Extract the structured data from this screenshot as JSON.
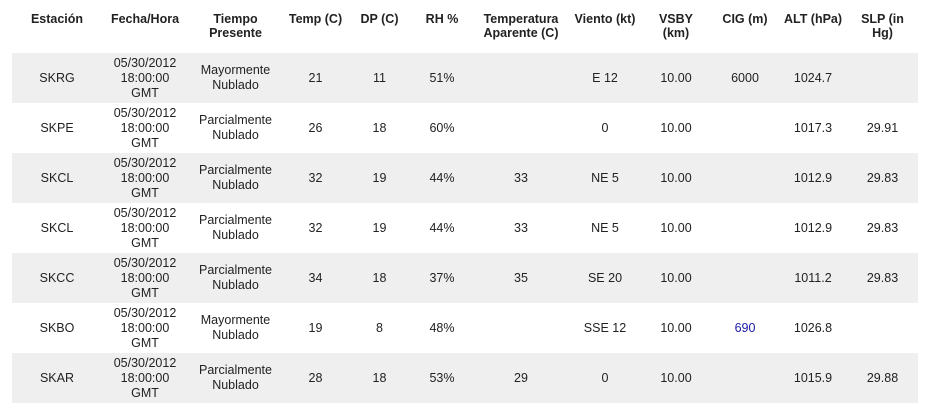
{
  "table": {
    "header": [
      "Estación",
      "Fecha/Hora",
      "Tiempo Presente",
      "Temp (C)",
      "DP (C)",
      "RH %",
      "Temperatura Aparente (C)",
      "Viento (kt)",
      "VSBY (km)",
      "CIG (m)",
      "ALT (hPa)",
      "SLP (in Hg)"
    ],
    "rows": [
      [
        "SKRG",
        "05/30/2012 18:00:00 GMT",
        "Mayormente Nublado",
        "21",
        "11",
        "51%",
        null,
        "E 12",
        "10.00",
        "6000",
        "1024.7",
        null
      ],
      [
        "SKPE",
        "05/30/2012 18:00:00 GMT",
        "Parcialmente Nublado",
        "26",
        "18",
        "60%",
        null,
        "0",
        "10.00",
        null,
        "1017.3",
        "29.91"
      ],
      [
        "SKCL",
        "05/30/2012 18:00:00 GMT",
        "Parcialmente Nublado",
        "32",
        "19",
        "44%",
        "33",
        "NE 5",
        "10.00",
        null,
        "1012.9",
        "29.83"
      ],
      [
        "SKCL",
        "05/30/2012 18:00:00 GMT",
        "Parcialmente Nublado",
        "32",
        "19",
        "44%",
        "33",
        "NE 5",
        "10.00",
        null,
        "1012.9",
        "29.83"
      ],
      [
        "SKCC",
        "05/30/2012 18:00:00 GMT",
        "Parcialmente Nublado",
        "34",
        "18",
        "37%",
        "35",
        "SE 20",
        "10.00",
        null,
        "1011.2",
        "29.83"
      ],
      [
        "SKBO",
        "05/30/2012 18:00:00 GMT",
        "Mayormente Nublado",
        "19",
        "8",
        "48%",
        null,
        "SSE 12",
        "10.00",
        "690",
        "1026.8",
        null
      ],
      [
        "SKAR",
        "05/30/2012 18:00:00 GMT",
        "Parcialmente Nublado",
        "28",
        "18",
        "53%",
        "29",
        "0",
        "10.00",
        null,
        "1015.9",
        "29.88"
      ]
    ],
    "links": [
      [
        5,
        9
      ]
    ]
  }
}
